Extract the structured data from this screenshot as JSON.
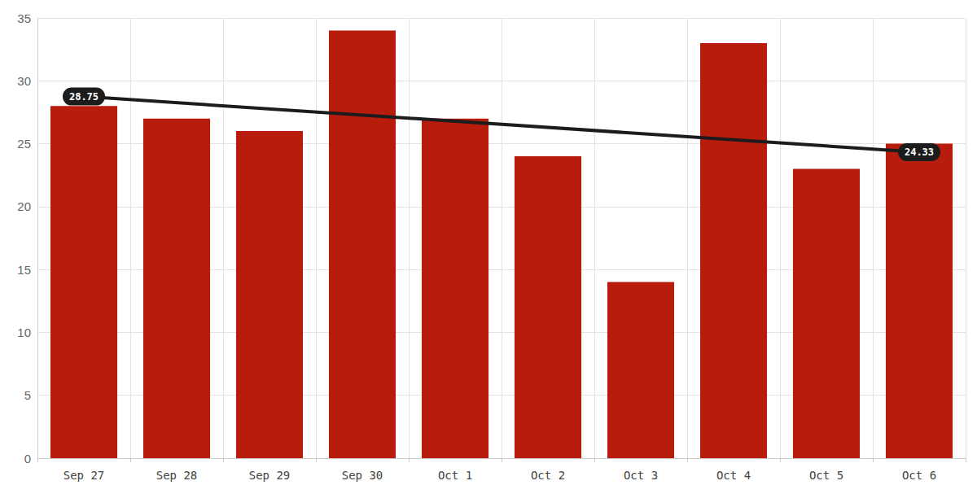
{
  "chart_data": {
    "type": "bar",
    "categories": [
      "Sep 27",
      "Sep 28",
      "Sep 29",
      "Sep 30",
      "Oct 1",
      "Oct 2",
      "Oct 3",
      "Oct 4",
      "Oct 5",
      "Oct 6"
    ],
    "values": [
      28,
      27,
      26,
      34,
      27,
      24,
      14,
      33,
      23,
      25
    ],
    "color": "#b81c0d",
    "ylim": [
      0,
      35
    ],
    "yticks": [
      0,
      5,
      10,
      15,
      20,
      25,
      30,
      35
    ],
    "grid": true,
    "trend_line": {
      "values": [
        28.75,
        24.33
      ],
      "color": "#1c1c1c",
      "data_labels": true
    }
  }
}
